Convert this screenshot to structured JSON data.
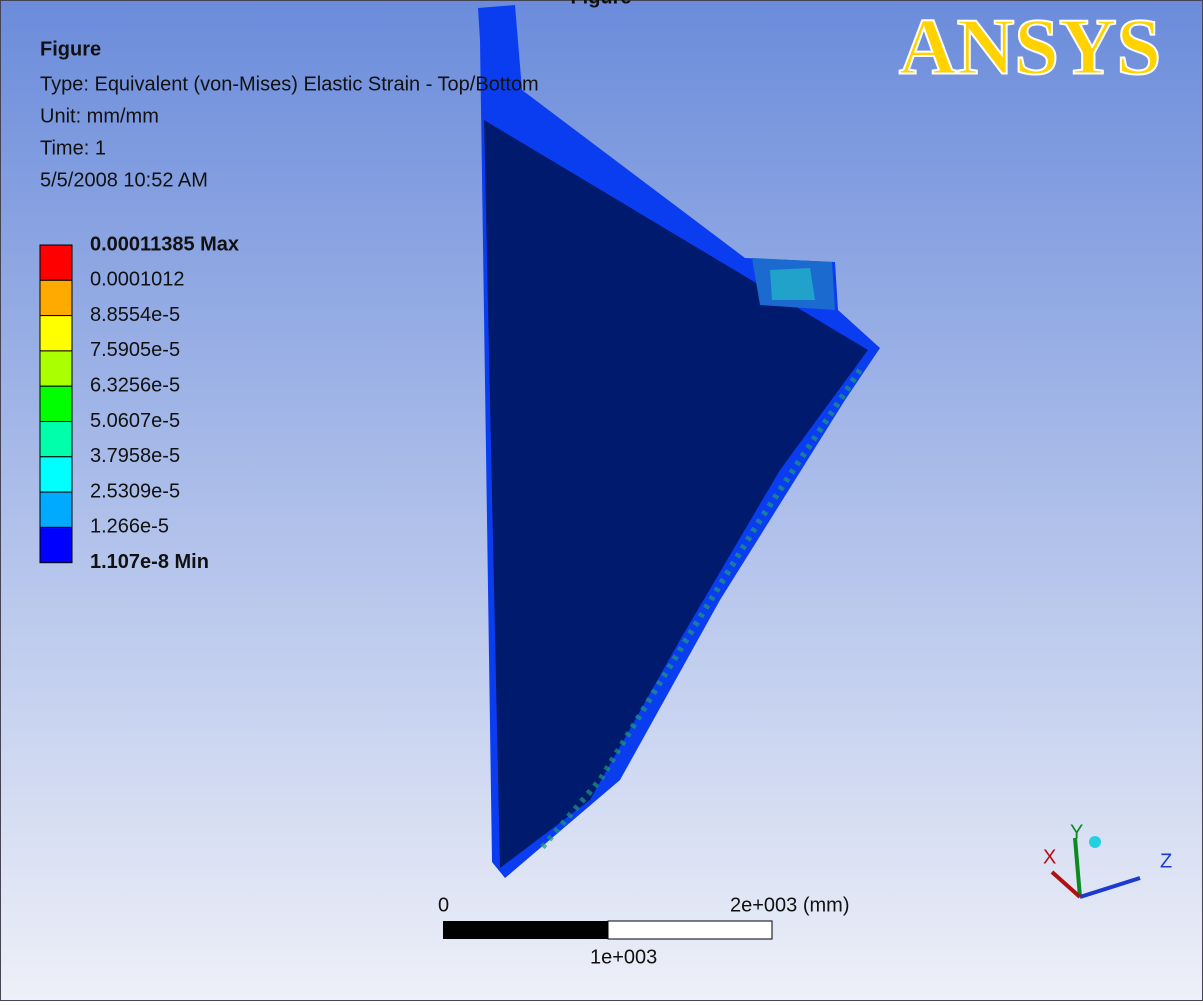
{
  "window_title": "Figure",
  "info": {
    "title": "Figure",
    "lines": [
      "Type: Equivalent (von-Mises) Elastic Strain - Top/Bottom",
      "Unit: mm/mm",
      "Time: 1",
      "5/5/2008 10:52 AM"
    ]
  },
  "legend": {
    "entries": [
      "0.00011385 Max",
      "0.0001012",
      "8.8554e-5",
      "7.5905e-5",
      "6.3256e-5",
      "5.0607e-5",
      "3.7958e-5",
      "2.5309e-5",
      "1.266e-5",
      "1.107e-8 Min"
    ],
    "colors": [
      "#ff0000",
      "#ffaa00",
      "#ffff00",
      "#aaff00",
      "#00ff00",
      "#00ffaa",
      "#00ffff",
      "#00aaff",
      "#0000ff"
    ]
  },
  "logo": "ANSYS",
  "scale_bar": {
    "start": "0",
    "end": "2e+003 (mm)",
    "middle": "1e+003"
  },
  "triad": {
    "x": "X",
    "y": "Y",
    "z": "Z"
  }
}
